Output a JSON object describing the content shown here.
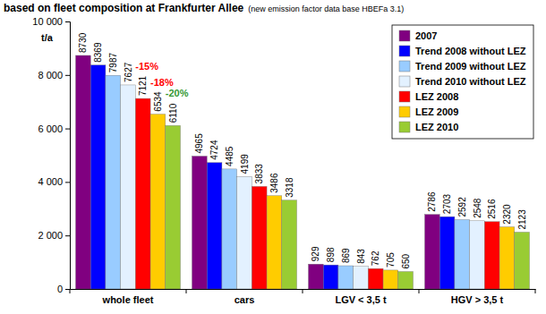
{
  "chart_data": {
    "type": "bar",
    "title": "based on fleet composition at Frankfurter Allee",
    "subtitle": "(new emission factor data base HBEFa 3.1)",
    "y_label": "t/a",
    "categories": [
      "whole fleet",
      "cars",
      "LGV < 3,5 t",
      "HGV > 3,5 t"
    ],
    "series": [
      {
        "name": "2007",
        "color": "#800080",
        "values": [
          8730,
          4965,
          929,
          2786
        ]
      },
      {
        "name": "Trend 2008 without LEZ",
        "color": "#0000ff",
        "values": [
          8369,
          4724,
          898,
          2703
        ]
      },
      {
        "name": "Trend 2009 without LEZ",
        "color": "#99ccff",
        "values": [
          7987,
          4485,
          869,
          2592
        ]
      },
      {
        "name": "Trend 2010 without LEZ",
        "color": "#e3f1ff",
        "values": [
          7627,
          4199,
          843,
          2548
        ]
      },
      {
        "name": "LEZ 2008",
        "color": "#ff0000",
        "values": [
          7121,
          3833,
          762,
          2516
        ]
      },
      {
        "name": "LEZ 2009",
        "color": "#ffcc00",
        "values": [
          6534,
          3486,
          705,
          2320
        ]
      },
      {
        "name": "LEZ 2010",
        "color": "#99cc33",
        "values": [
          6110,
          3318,
          650,
          2123
        ]
      }
    ],
    "ylim": [
      0,
      10000
    ],
    "yticks": [
      0,
      {
        "value": 2000,
        "label": "2 000"
      },
      {
        "value": 4000,
        "label": "4 000"
      },
      {
        "value": 6000,
        "label": "6 000"
      },
      {
        "value": 8000,
        "label": "8 000"
      },
      {
        "value": 10000,
        "label": "10 000"
      }
    ],
    "grid": false,
    "legend": "top-right",
    "data_labels": true,
    "annotations": [
      {
        "text": "-15%",
        "color": "#ff0000"
      },
      {
        "text": "-18%",
        "color": "#ff0000"
      },
      {
        "text": "-20%",
        "color": "#339933"
      }
    ]
  }
}
